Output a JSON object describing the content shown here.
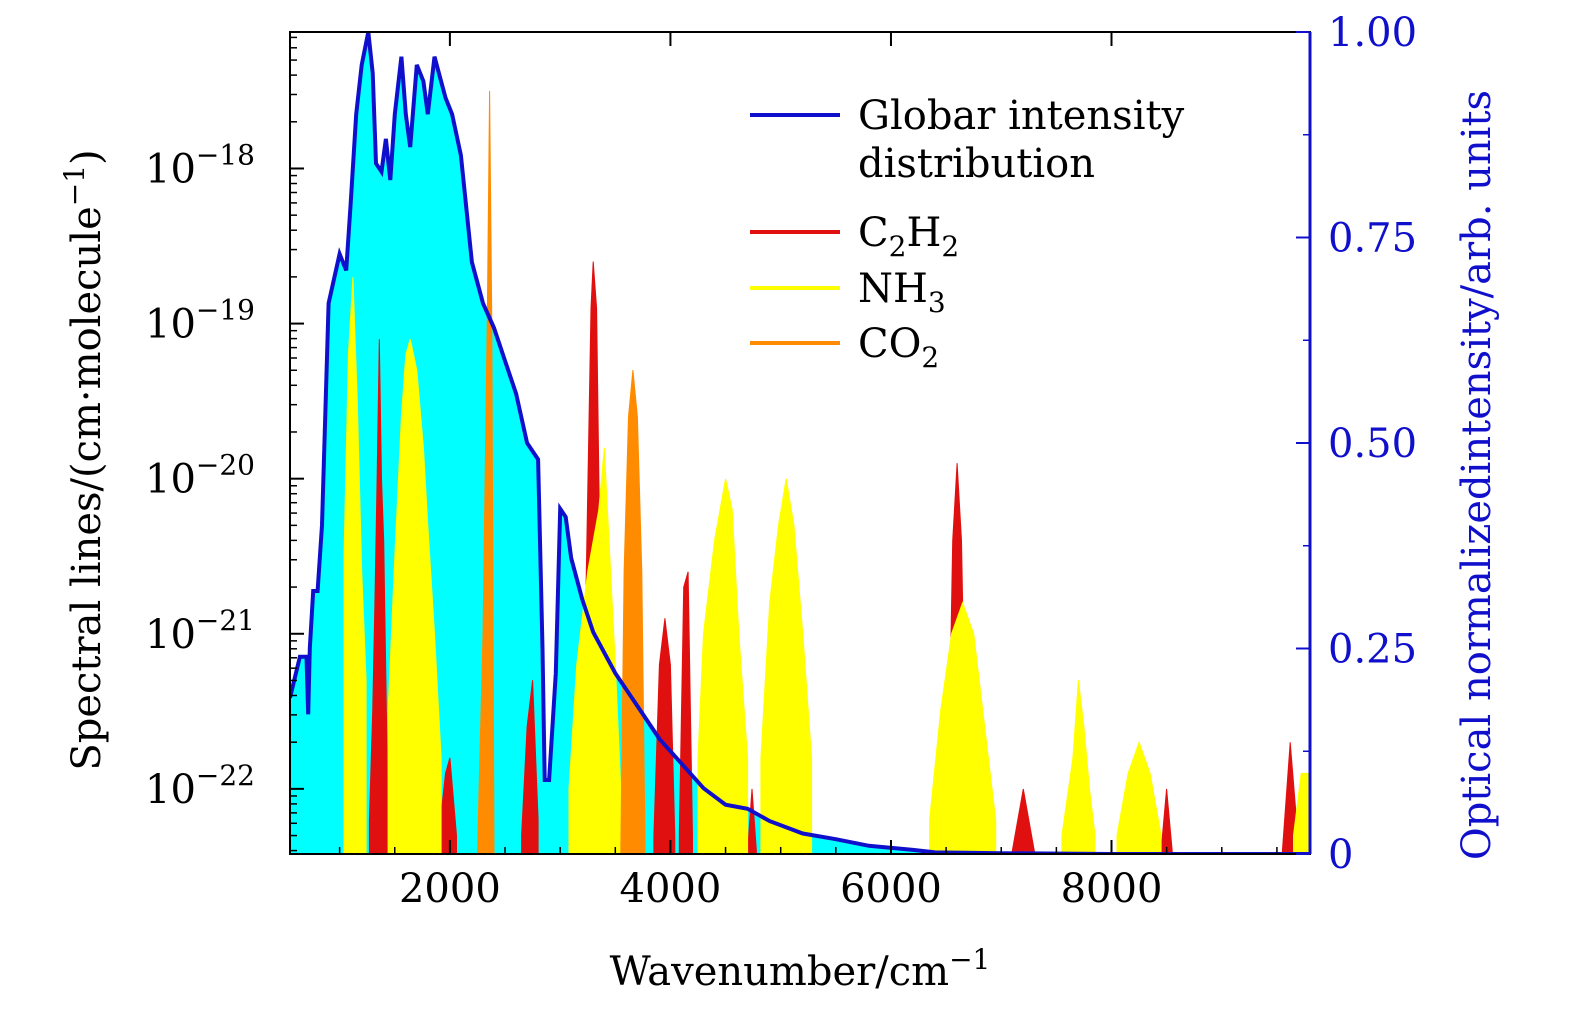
{
  "chart_data": {
    "type": "area",
    "xlabel": "Wavenumber/cm",
    "xlabel_sup": "−1",
    "ylabel": "Spectral lines/(cm·molecule",
    "ylabel_sup": "−1",
    "ylabel_tail": ")",
    "y2label": "Optical normalizedintensity/arb. units",
    "xlim": [
      550,
      9800
    ],
    "ylim_log": [
      -22.42,
      -17.12
    ],
    "y2lim": [
      0,
      1.0
    ],
    "x_ticks": [
      2000,
      4000,
      6000,
      8000
    ],
    "x_tick_labels": [
      "2000",
      "4000",
      "6000",
      "8000"
    ],
    "y_ticks": [
      {
        "value": -18,
        "base": "10",
        "exp": "−18"
      },
      {
        "value": -19,
        "base": "10",
        "exp": "−19"
      },
      {
        "value": -20,
        "base": "10",
        "exp": "−20"
      },
      {
        "value": -21,
        "base": "10",
        "exp": "−21"
      },
      {
        "value": -22,
        "base": "10",
        "exp": "−22"
      }
    ],
    "y2_ticks": [
      {
        "value": 1.0,
        "label": "1.00"
      },
      {
        "value": 0.75,
        "label": "0.75"
      },
      {
        "value": 0.5,
        "label": "0.50"
      },
      {
        "value": 0.25,
        "label": "0.25"
      },
      {
        "value": 0.0,
        "label": "0"
      }
    ],
    "legend": {
      "placement": "top-right",
      "entries": [
        {
          "label_lines": [
            "Globar intensity",
            "distribution"
          ],
          "color": "#1010cc"
        },
        {
          "label_parts": [
            [
              "C",
              ""
            ],
            [
              "2",
              "sub"
            ],
            [
              "H",
              ""
            ],
            [
              "2",
              "sub"
            ]
          ],
          "color": "#e01010"
        },
        {
          "label_parts": [
            [
              "NH",
              ""
            ],
            [
              "3",
              "sub"
            ]
          ],
          "color": "#ffff00"
        },
        {
          "label_parts": [
            [
              "CO",
              ""
            ],
            [
              "2",
              "sub"
            ]
          ],
          "color": "#ff8c00"
        }
      ]
    },
    "globar": {
      "name": "Globar intensity distribution",
      "color": "#1010cc",
      "fill": "#00ffff",
      "x": [
        550,
        640,
        700,
        715,
        730,
        760,
        800,
        840,
        900,
        1000,
        1060,
        1100,
        1150,
        1200,
        1260,
        1300,
        1330,
        1380,
        1420,
        1460,
        1500,
        1560,
        1600,
        1640,
        1700,
        1760,
        1800,
        1860,
        1920,
        1960,
        2020,
        2100,
        2200,
        2300,
        2400,
        2500,
        2600,
        2700,
        2800,
        2840,
        2860,
        2900,
        2960,
        3000,
        3050,
        3100,
        3200,
        3300,
        3500,
        3700,
        3900,
        4100,
        4300,
        4500,
        4700,
        4900,
        5200,
        5500,
        5800,
        6200,
        6400,
        7000,
        8000,
        9800
      ],
      "y": [
        0.19,
        0.24,
        0.24,
        0.17,
        0.25,
        0.32,
        0.32,
        0.4,
        0.67,
        0.73,
        0.71,
        0.79,
        0.9,
        0.96,
        1.0,
        0.95,
        0.84,
        0.83,
        0.87,
        0.82,
        0.9,
        0.97,
        0.9,
        0.86,
        0.96,
        0.94,
        0.9,
        0.97,
        0.94,
        0.92,
        0.9,
        0.85,
        0.72,
        0.67,
        0.64,
        0.6,
        0.56,
        0.5,
        0.48,
        0.25,
        0.09,
        0.09,
        0.22,
        0.42,
        0.41,
        0.36,
        0.31,
        0.27,
        0.22,
        0.18,
        0.14,
        0.11,
        0.08,
        0.06,
        0.055,
        0.04,
        0.025,
        0.018,
        0.01,
        0.005,
        0.002,
        0.001,
        0.0,
        0.0
      ]
    },
    "series": [
      {
        "name": "C2H2",
        "color": "#e01010",
        "bands": [
          {
            "x": [
              1270,
              1300,
              1320,
              1340,
              1360,
              1380,
              1400,
              1420,
              1440
            ],
            "y": [
              -22.2,
              -21.5,
              -20.8,
              -20.0,
              -19.1,
              -20.0,
              -20.4,
              -21.3,
              -22.2
            ]
          },
          {
            "x": [
              1900,
              1960,
              2000,
              2060
            ],
            "y": [
              -22.3,
              -21.9,
              -21.8,
              -22.3
            ]
          },
          {
            "x": [
              2650,
              2700,
              2750,
              2800
            ],
            "y": [
              -22.3,
              -21.6,
              -21.3,
              -22.2
            ]
          },
          {
            "x": [
              3200,
              3240,
              3280,
              3300,
              3330,
              3360,
              3400
            ],
            "y": [
              -22.0,
              -20.5,
              -18.9,
              -18.6,
              -18.9,
              -20.5,
              -22.0
            ]
          },
          {
            "x": [
              3850,
              3900,
              3950,
              4000,
              4040
            ],
            "y": [
              -22.3,
              -21.2,
              -20.9,
              -21.2,
              -22.3
            ]
          },
          {
            "x": [
              4080,
              4120,
              4160,
              4200
            ],
            "y": [
              -22.3,
              -20.7,
              -20.6,
              -22.3
            ]
          },
          {
            "x": [
              4700,
              4740,
              4780
            ],
            "y": [
              -22.4,
              -22.0,
              -22.4
            ]
          },
          {
            "x": [
              6520,
              6560,
              6600,
              6640,
              6680
            ],
            "y": [
              -22.0,
              -20.4,
              -19.9,
              -20.4,
              -22.0
            ]
          },
          {
            "x": [
              7100,
              7200,
              7300
            ],
            "y": [
              -22.4,
              -22.0,
              -22.4
            ]
          },
          {
            "x": [
              8450,
              8500,
              8550
            ],
            "y": [
              -22.4,
              -22.0,
              -22.4
            ]
          },
          {
            "x": [
              9550,
              9620,
              9700
            ],
            "y": [
              -22.4,
              -21.7,
              -22.4
            ]
          }
        ]
      },
      {
        "name": "NH3",
        "color": "#ffff00",
        "bands": [
          {
            "x": [
              1040,
              1080,
              1120,
              1160,
              1200,
              1240
            ],
            "y": [
              -20.5,
              -19.2,
              -18.7,
              -19.5,
              -20.6,
              -21.3
            ]
          },
          {
            "x": [
              1440,
              1500,
              1560,
              1600,
              1640,
              1700,
              1760,
              1800,
              1860,
              1920
            ],
            "y": [
              -21.5,
              -20.5,
              -19.6,
              -19.2,
              -19.1,
              -19.3,
              -19.8,
              -20.3,
              -21.0,
              -21.8
            ]
          },
          {
            "x": [
              3080,
              3150,
              3250,
              3350,
              3400,
              3450,
              3500,
              3550
            ],
            "y": [
              -22.0,
              -21.2,
              -20.6,
              -20.2,
              -19.8,
              -20.5,
              -21.2,
              -22.0
            ]
          },
          {
            "x": [
              4250,
              4300,
              4400,
              4500,
              4560,
              4620,
              4700
            ],
            "y": [
              -21.8,
              -21.0,
              -20.4,
              -20.0,
              -20.2,
              -21.0,
              -21.8
            ]
          },
          {
            "x": [
              4820,
              4900,
              4980,
              5050,
              5120,
              5200,
              5280
            ],
            "y": [
              -21.8,
              -20.8,
              -20.3,
              -20.0,
              -20.3,
              -21.0,
              -21.8
            ]
          },
          {
            "x": [
              6350,
              6450,
              6550,
              6650,
              6750,
              6850,
              6950
            ],
            "y": [
              -22.2,
              -21.5,
              -21.0,
              -20.8,
              -21.0,
              -21.6,
              -22.2
            ]
          },
          {
            "x": [
              7550,
              7650,
              7700,
              7750,
              7800,
              7850
            ],
            "y": [
              -22.3,
              -21.8,
              -21.3,
              -21.6,
              -22.0,
              -22.3
            ]
          },
          {
            "x": [
              8050,
              8150,
              8250,
              8350,
              8450
            ],
            "y": [
              -22.3,
              -21.9,
              -21.7,
              -21.9,
              -22.3
            ]
          },
          {
            "x": [
              9650,
              9720,
              9800
            ],
            "y": [
              -22.3,
              -21.9,
              -21.9
            ]
          }
        ]
      },
      {
        "name": "CO2",
        "color": "#ff8c00",
        "bands": [
          {
            "x": [
              2250,
              2300,
              2340,
              2360,
              2380,
              2400
            ],
            "y": [
              -22.4,
              -21.0,
              -18.9,
              -17.5,
              -19.0,
              -22.4
            ]
          },
          {
            "x": [
              3550,
              3580,
              3620,
              3660,
              3700,
              3740,
              3770
            ],
            "y": [
              -22.4,
              -20.6,
              -19.6,
              -19.3,
              -19.6,
              -20.6,
              -22.4
            ]
          }
        ]
      }
    ]
  }
}
